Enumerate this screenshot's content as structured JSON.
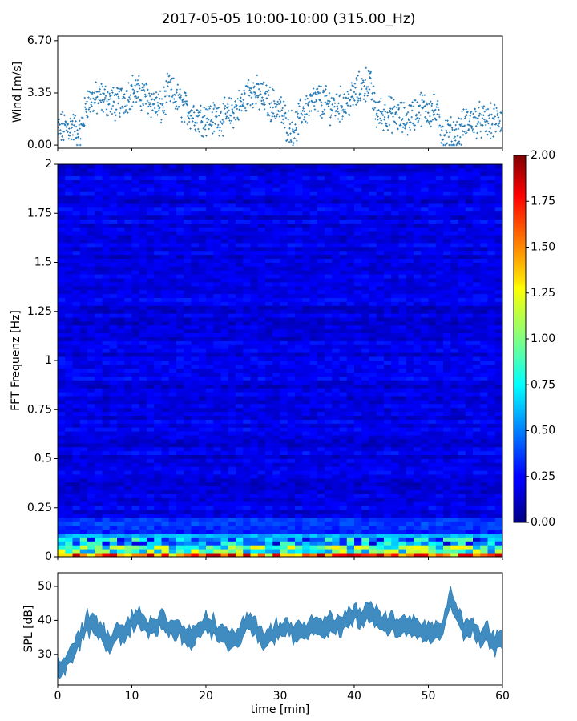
{
  "figure": {
    "title": "2017-05-05 10:00-10:00 (315.00_Hz)"
  },
  "chart_data": [
    {
      "type": "scatter",
      "name": "wind",
      "ylabel": "Wind [m/s]",
      "yticks": [
        "0.00",
        "3.35",
        "6.70"
      ],
      "ytick_values": [
        0.0,
        3.35,
        6.7
      ],
      "xlim": [
        0,
        60
      ],
      "ylim": [
        -0.2,
        7.0
      ],
      "color": "#1f77b4",
      "x_step_min": 0.05,
      "trend": {
        "x": [
          0,
          2,
          3,
          4,
          6,
          8,
          10,
          12,
          14,
          15,
          17,
          19,
          21,
          23,
          25,
          26,
          28,
          30,
          31,
          32,
          33,
          35,
          37,
          39,
          41,
          42,
          43,
          45,
          47,
          49,
          51,
          52,
          54,
          55,
          56,
          57,
          58,
          60
        ],
        "y": [
          1.0,
          1.2,
          0.6,
          2.8,
          3.0,
          2.6,
          3.5,
          3.1,
          2.3,
          3.6,
          2.4,
          1.8,
          1.7,
          1.9,
          2.7,
          3.6,
          2.9,
          2.3,
          1.3,
          1.0,
          2.2,
          2.9,
          2.5,
          2.7,
          3.7,
          4.1,
          2.0,
          2.0,
          1.6,
          2.4,
          2.1,
          0.7,
          0.7,
          1.4,
          1.6,
          1.6,
          1.4,
          1.7
        ]
      }
    },
    {
      "type": "heatmap",
      "name": "spectrogram",
      "ylabel": "FFT Frequenz [Hz]",
      "yticks": [
        "0",
        "0.25",
        "0.5",
        "0.75",
        "1",
        "1.25",
        "1.5",
        "1.75",
        "2"
      ],
      "ytick_values": [
        0,
        0.25,
        0.5,
        0.75,
        1,
        1.25,
        1.5,
        1.75,
        2
      ],
      "xlim": [
        0,
        60
      ],
      "ylim": [
        0,
        2
      ],
      "colormap": "jet",
      "clim": [
        0,
        2
      ],
      "colorbar_ticks": [
        "0.00",
        "0.25",
        "0.50",
        "0.75",
        "1.00",
        "1.25",
        "1.50",
        "1.75",
        "2.00"
      ],
      "colorbar_tick_values": [
        0,
        0.25,
        0.5,
        0.75,
        1,
        1.25,
        1.5,
        1.75,
        2
      ],
      "typical_value_high_freq": 0.2,
      "typical_value_low_freq": 1.5
    },
    {
      "type": "area",
      "name": "spl",
      "ylabel": "SPL [dB]",
      "xlabel": "time [min]",
      "yticks": [
        "30",
        "40",
        "50"
      ],
      "ytick_values": [
        30,
        40,
        50
      ],
      "xticks": [
        "0",
        "10",
        "20",
        "30",
        "40",
        "50",
        "60"
      ],
      "xtick_values": [
        0,
        10,
        20,
        30,
        40,
        50,
        60
      ],
      "xlim": [
        0,
        60
      ],
      "ylim": [
        21,
        54
      ],
      "color": "#1f77b4",
      "x": [
        0,
        1,
        2,
        3,
        4,
        5,
        6,
        7,
        8,
        9,
        10,
        11,
        12,
        13,
        14,
        15,
        16,
        17,
        18,
        19,
        20,
        21,
        22,
        23,
        24,
        25,
        26,
        27,
        28,
        29,
        30,
        31,
        32,
        33,
        34,
        35,
        36,
        37,
        38,
        39,
        40,
        41,
        42,
        43,
        44,
        45,
        46,
        47,
        48,
        49,
        50,
        51,
        52,
        53,
        54,
        55,
        56,
        57,
        58,
        59,
        60
      ],
      "y": [
        26,
        27,
        31,
        35,
        39,
        38,
        36,
        33,
        37,
        36,
        40,
        41,
        39,
        37,
        40,
        37,
        38,
        36,
        35,
        36,
        40,
        38,
        36,
        34,
        35,
        37,
        39,
        36,
        35,
        36,
        37,
        38,
        36,
        37,
        38,
        39,
        38,
        39,
        38,
        40,
        42,
        40,
        43,
        41,
        38,
        40,
        38,
        38,
        39,
        37,
        37,
        36,
        38,
        47,
        41,
        37,
        38,
        35,
        36,
        32,
        36
      ],
      "band_halfwidth": 2.5
    }
  ]
}
